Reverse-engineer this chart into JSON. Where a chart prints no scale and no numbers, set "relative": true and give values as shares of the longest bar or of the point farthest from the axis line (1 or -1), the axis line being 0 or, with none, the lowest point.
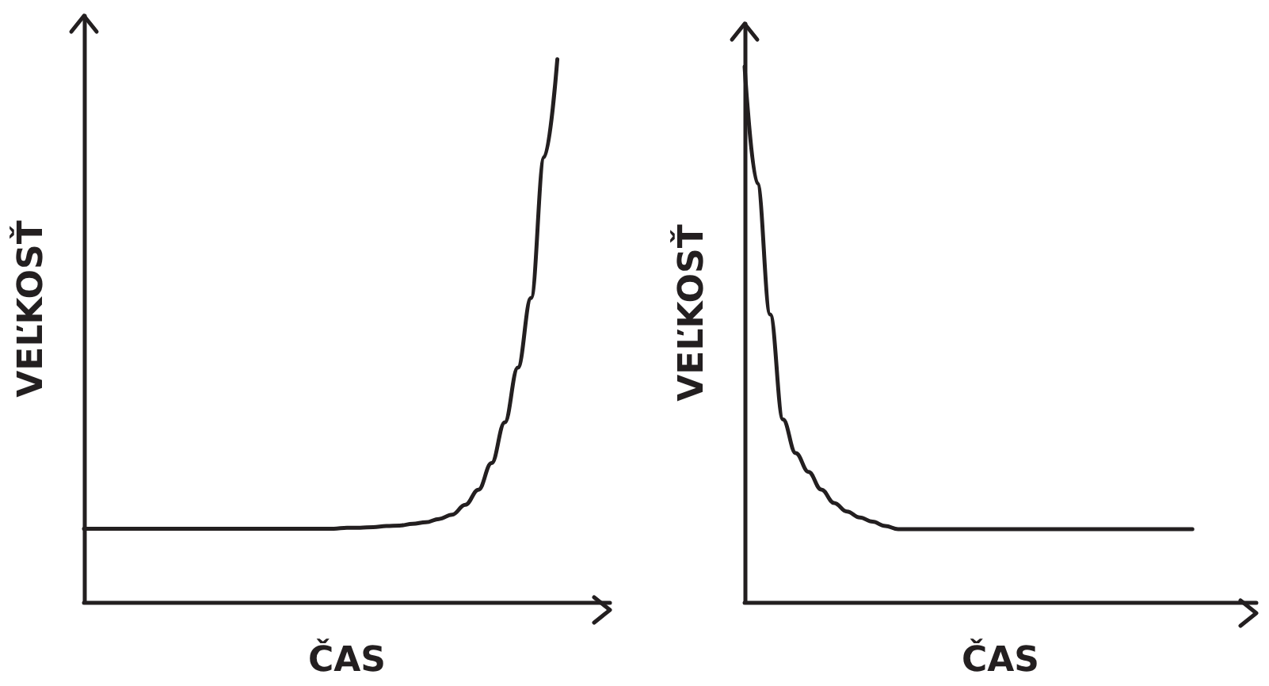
{
  "chart_data": [
    {
      "type": "line",
      "xlabel": "ČAS",
      "ylabel": "VEĽKOSŤ",
      "relative": true,
      "marker": "none",
      "line_style": "solid",
      "color": "#231f20",
      "categories": [
        null,
        null,
        null,
        null,
        null,
        null,
        null,
        null,
        null,
        null,
        null,
        null,
        null,
        null,
        null,
        null,
        null,
        null,
        null,
        null,
        null,
        null,
        null,
        null,
        null,
        null,
        null,
        null,
        null,
        null,
        null,
        null,
        null,
        null,
        null,
        null,
        null,
        null,
        null,
        null,
        null
      ],
      "values": [
        0.135,
        0.135,
        0.135,
        0.135,
        0.135,
        0.135,
        0.135,
        0.135,
        0.135,
        0.135,
        0.135,
        0.135,
        0.135,
        0.135,
        0.135,
        0.135,
        0.135,
        0.135,
        0.135,
        0.135,
        0.137,
        0.137,
        0.138,
        0.14,
        0.141,
        0.144,
        0.147,
        0.153,
        0.161,
        0.179,
        0.207,
        0.256,
        0.331,
        0.432,
        0.56,
        0.82,
        1,
        null,
        null,
        null,
        null
      ]
    },
    {
      "type": "line",
      "xlabel": "ČAS",
      "ylabel": "VEĽKOSŤ",
      "relative": true,
      "marker": "none",
      "line_style": "solid",
      "color": "#231f20",
      "categories": [
        null,
        null,
        null,
        null,
        null,
        null,
        null,
        null,
        null,
        null,
        null,
        null,
        null,
        null,
        null,
        null,
        null,
        null,
        null,
        null,
        null,
        null,
        null,
        null,
        null,
        null,
        null,
        null,
        null,
        null,
        null,
        null,
        null,
        null,
        null,
        null,
        null,
        null,
        null,
        null,
        null
      ],
      "values": [
        1,
        0.782,
        0.537,
        0.341,
        0.278,
        0.243,
        0.21,
        0.185,
        0.169,
        0.158,
        0.15,
        0.142,
        0.136,
        0.136,
        0.136,
        0.136,
        0.136,
        0.136,
        0.136,
        0.136,
        0.136,
        0.136,
        0.136,
        0.136,
        0.136,
        0.136,
        0.136,
        0.136,
        0.136,
        0.136,
        0.136,
        0.136,
        0.136,
        0.136,
        0.136,
        0.136,
        null,
        null,
        null,
        null,
        null
      ]
    }
  ]
}
